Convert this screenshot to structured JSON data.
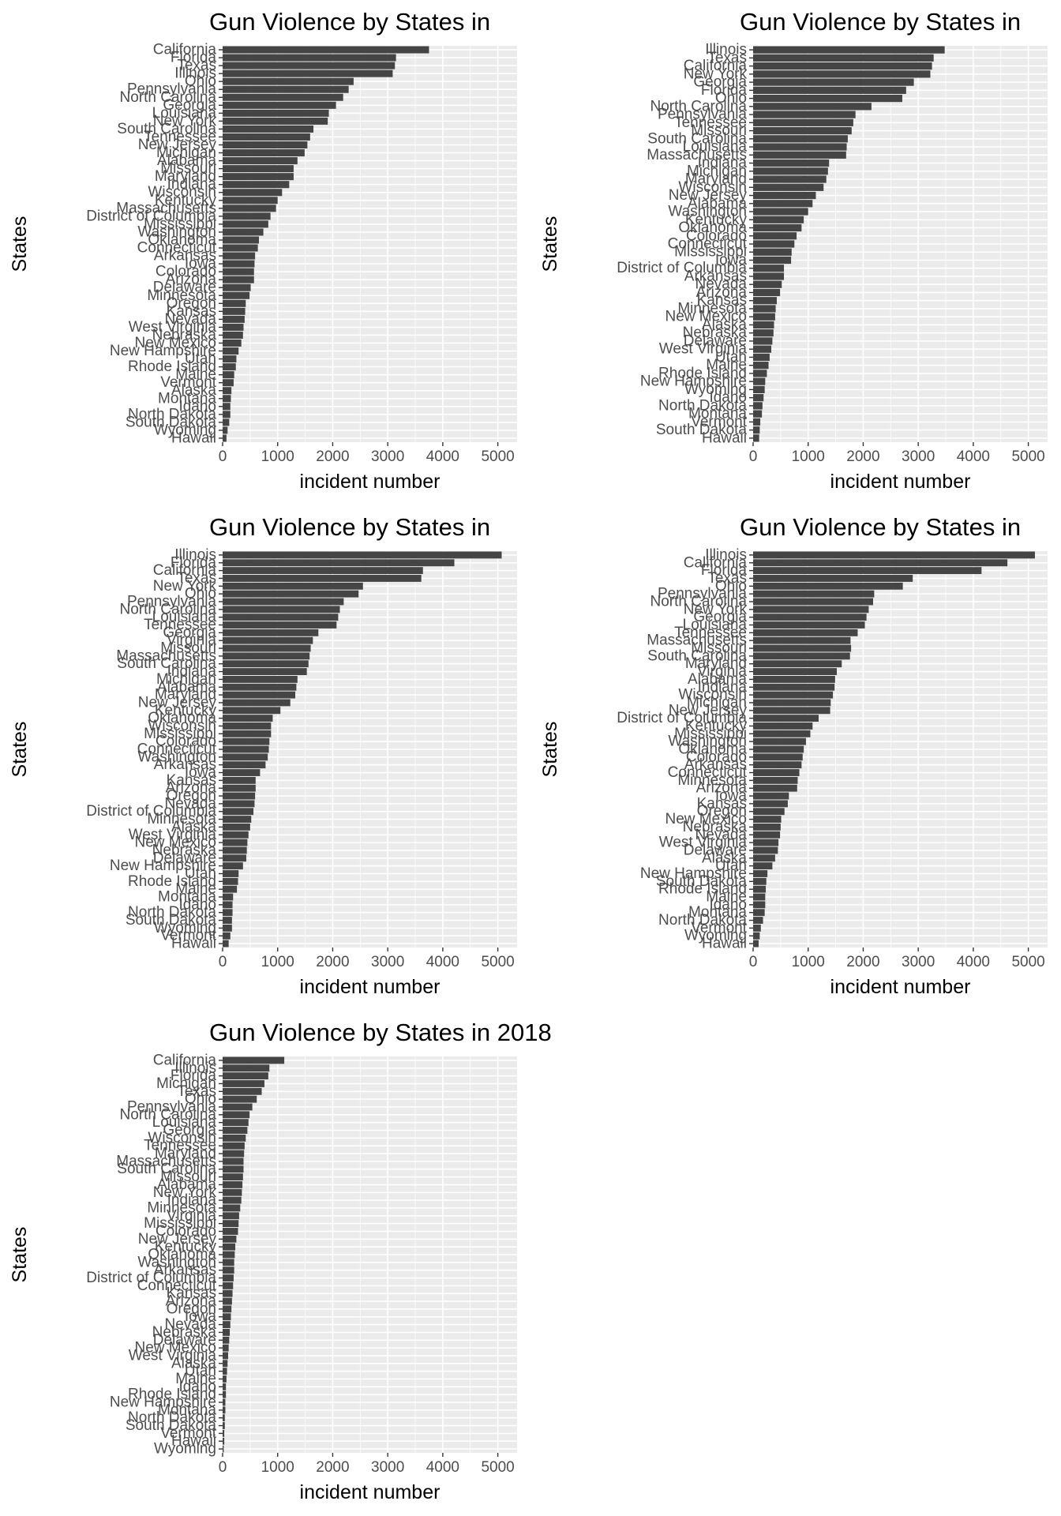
{
  "chart_data": [
    {
      "type": "bar",
      "title": "Gun Violence by States in",
      "xlabel": "incident number",
      "ylabel": "States",
      "xlim": [
        0,
        5350
      ],
      "xticks": [
        0,
        1000,
        2000,
        3000,
        4000,
        5000
      ],
      "grid": true,
      "categories": [
        "California",
        "Florida",
        "Texas",
        "Illinois",
        "Ohio",
        "Pennsylvania",
        "North Carolina",
        "Georgia",
        "Louisiana",
        "New York",
        "South Carolina",
        "Tennessee",
        "New Jersey",
        "Michigan",
        "Alabama",
        "Missouri",
        "Maryland",
        "Indiana",
        "Wisconsin",
        "Kentucky",
        "Massachusetts",
        "District of Columbia",
        "Mississippi",
        "Washington",
        "Oklahoma",
        "Connecticut",
        "Arkansas",
        "Iowa",
        "Colorado",
        "Arizona",
        "Delaware",
        "Minnesota",
        "Oregon",
        "Kansas",
        "Nevada",
        "West Virginia",
        "Nebraska",
        "New Mexico",
        "New Hampshire",
        "Utah",
        "Rhode Island",
        "Maine",
        "Vermont",
        "Alaska",
        "Montana",
        "Idaho",
        "North Dakota",
        "South Dakota",
        "Wyoming",
        "Hawaii"
      ],
      "values": [
        3750,
        3150,
        3130,
        3090,
        2380,
        2290,
        2190,
        2060,
        1930,
        1910,
        1650,
        1590,
        1540,
        1490,
        1360,
        1290,
        1290,
        1210,
        1080,
        1000,
        970,
        870,
        830,
        740,
        660,
        640,
        590,
        580,
        570,
        570,
        510,
        490,
        420,
        410,
        400,
        380,
        370,
        340,
        290,
        250,
        240,
        210,
        200,
        160,
        150,
        140,
        140,
        120,
        90,
        70
      ]
    },
    {
      "type": "bar",
      "title": "Gun Violence by States in",
      "xlabel": "incident number",
      "ylabel": "States",
      "xlim": [
        0,
        5350
      ],
      "xticks": [
        0,
        1000,
        2000,
        3000,
        4000,
        5000
      ],
      "grid": true,
      "categories": [
        "Illinois",
        "Texas",
        "California",
        "New York",
        "Georgia",
        "Florida",
        "Ohio",
        "North Carolina",
        "Pennsylvania",
        "Tennessee",
        "Missouri",
        "South Carolina",
        "Louisiana",
        "Massachusetts",
        "Indiana",
        "Michigan",
        "Maryland",
        "Wisconsin",
        "New Jersey",
        "Alabama",
        "Washington",
        "Kentucky",
        "Oklahoma",
        "Colorado",
        "Connecticut",
        "Mississippi",
        "Iowa",
        "District of Columbia",
        "Arkansas",
        "Nevada",
        "Arizona",
        "Kansas",
        "Minnesota",
        "New Mexico",
        "Alaska",
        "Nebraska",
        "Delaware",
        "West Virginia",
        "Utah",
        "Maine",
        "Rhode Island",
        "New Hampshire",
        "Wyoming",
        "Idaho",
        "North Dakota",
        "Montana",
        "Vermont",
        "South Dakota",
        "Hawaii"
      ],
      "values": [
        3480,
        3280,
        3250,
        3220,
        2920,
        2780,
        2710,
        2150,
        1860,
        1820,
        1790,
        1720,
        1700,
        1690,
        1380,
        1360,
        1330,
        1280,
        1140,
        1080,
        1000,
        920,
        880,
        790,
        750,
        700,
        690,
        560,
        560,
        520,
        490,
        430,
        410,
        400,
        380,
        370,
        350,
        330,
        300,
        280,
        250,
        220,
        210,
        190,
        170,
        160,
        130,
        120,
        110
      ]
    },
    {
      "type": "bar",
      "title": "Gun Violence by States in",
      "xlabel": "incident number",
      "ylabel": "States",
      "xlim": [
        0,
        5350
      ],
      "xticks": [
        0,
        1000,
        2000,
        3000,
        4000,
        5000
      ],
      "grid": true,
      "categories": [
        "Illinois",
        "Florida",
        "California",
        "Texas",
        "New York",
        "Ohio",
        "Pennsylvania",
        "North Carolina",
        "Louisiana",
        "Tennessee",
        "Georgia",
        "Virginia",
        "Missouri",
        "Massachusetts",
        "South Carolina",
        "Indiana",
        "Michigan",
        "Alabama",
        "Maryland",
        "New Jersey",
        "Kentucky",
        "Oklahoma",
        "Wisconsin",
        "Mississippi",
        "Colorado",
        "Connecticut",
        "Washington",
        "Arkansas",
        "Iowa",
        "Kansas",
        "Arizona",
        "Oregon",
        "Nevada",
        "District of Columbia",
        "Minnesota",
        "Alaska",
        "West Virginia",
        "New Mexico",
        "Nebraska",
        "Delaware",
        "New Hampshire",
        "Utah",
        "Rhode Island",
        "Maine",
        "Montana",
        "Idaho",
        "North Dakota",
        "South Dakota",
        "Wyoming",
        "Vermont",
        "Hawaii"
      ],
      "values": [
        5070,
        4210,
        3640,
        3610,
        2550,
        2470,
        2200,
        2130,
        2100,
        2070,
        1740,
        1640,
        1600,
        1580,
        1560,
        1530,
        1360,
        1340,
        1320,
        1230,
        1050,
        910,
        880,
        880,
        850,
        840,
        820,
        780,
        680,
        600,
        600,
        590,
        580,
        560,
        520,
        500,
        470,
        450,
        440,
        430,
        370,
        290,
        280,
        260,
        190,
        180,
        180,
        170,
        170,
        140,
        110
      ]
    },
    {
      "type": "bar",
      "title": "Gun Violence by States in",
      "xlabel": "incident number",
      "ylabel": "States",
      "xlim": [
        0,
        5350
      ],
      "xticks": [
        0,
        1000,
        2000,
        3000,
        4000,
        5000
      ],
      "grid": true,
      "categories": [
        "Illinois",
        "California",
        "Florida",
        "Texas",
        "Ohio",
        "Pennsylvania",
        "North Carolina",
        "New York",
        "Georgia",
        "Louisiana",
        "Tennessee",
        "Massachusetts",
        "Missouri",
        "South Carolina",
        "Maryland",
        "Virginia",
        "Alabama",
        "Indiana",
        "Wisconsin",
        "Michigan",
        "New Jersey",
        "District of Columbia",
        "Kentucky",
        "Mississippi",
        "Washington",
        "Oklahoma",
        "Colorado",
        "Arkansas",
        "Connecticut",
        "Minnesota",
        "Arizona",
        "Iowa",
        "Kansas",
        "Oregon",
        "New Mexico",
        "Nebraska",
        "Nevada",
        "West Virginia",
        "Delaware",
        "Alaska",
        "Utah",
        "New Hampshire",
        "South Dakota",
        "Rhode Island",
        "Maine",
        "Idaho",
        "Montana",
        "North Dakota",
        "Vermont",
        "Wyoming",
        "Hawaii"
      ],
      "values": [
        5120,
        4620,
        4150,
        2900,
        2720,
        2200,
        2180,
        2100,
        2060,
        2030,
        1900,
        1770,
        1780,
        1760,
        1610,
        1520,
        1490,
        1480,
        1450,
        1410,
        1400,
        1190,
        1080,
        1040,
        960,
        920,
        900,
        880,
        840,
        810,
        800,
        650,
        630,
        570,
        510,
        500,
        490,
        460,
        450,
        400,
        350,
        260,
        240,
        230,
        220,
        220,
        210,
        180,
        140,
        120,
        100
      ]
    },
    {
      "type": "bar",
      "title": "Gun Violence by States in 2018",
      "xlabel": "incident number",
      "ylabel": "States",
      "xlim": [
        0,
        5350
      ],
      "xticks": [
        0,
        1000,
        2000,
        3000,
        4000,
        5000
      ],
      "grid": true,
      "categories": [
        "California",
        "Illinois",
        "Florida",
        "Michigan",
        "Texas",
        "Ohio",
        "Pennsylvania",
        "North Carolina",
        "Louisiana",
        "Georgia",
        "Wisconsin",
        "Tennessee",
        "Maryland",
        "Massachusetts",
        "South Carolina",
        "Missouri",
        "Alabama",
        "New York",
        "Indiana",
        "Minnesota",
        "Virginia",
        "Mississippi",
        "Colorado",
        "New Jersey",
        "Kentucky",
        "Oklahoma",
        "Washington",
        "Arkansas",
        "District of Columbia",
        "Connecticut",
        "Kansas",
        "Arizona",
        "Oregon",
        "Iowa",
        "Nevada",
        "Nebraska",
        "Delaware",
        "New Mexico",
        "West Virginia",
        "Alaska",
        "Utah",
        "Maine",
        "Idaho",
        "Rhode Island",
        "New Hampshire",
        "Montana",
        "North Dakota",
        "South Dakota",
        "Vermont",
        "Hawaii",
        "Wyoming"
      ],
      "values": [
        1120,
        850,
        830,
        760,
        710,
        620,
        540,
        490,
        470,
        450,
        420,
        400,
        390,
        380,
        380,
        370,
        360,
        350,
        340,
        320,
        300,
        290,
        280,
        250,
        230,
        220,
        210,
        210,
        200,
        190,
        180,
        170,
        160,
        150,
        140,
        130,
        120,
        110,
        100,
        90,
        80,
        70,
        60,
        60,
        50,
        50,
        40,
        40,
        30,
        30,
        20
      ]
    }
  ]
}
